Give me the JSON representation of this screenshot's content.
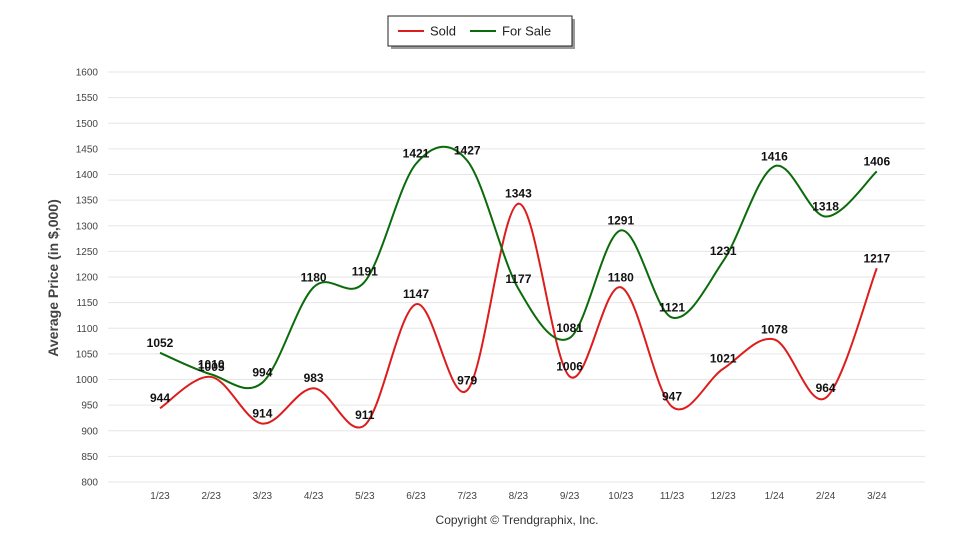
{
  "chart_data": {
    "type": "line",
    "title": "",
    "xlabel": "",
    "ylabel": "Average Price (in $,000)",
    "categories": [
      "1/23",
      "2/23",
      "3/23",
      "4/23",
      "5/23",
      "6/23",
      "7/23",
      "8/23",
      "9/23",
      "10/23",
      "11/23",
      "12/23",
      "1/24",
      "2/24",
      "3/24"
    ],
    "series": [
      {
        "name": "Sold",
        "color": "#dd1c1c",
        "values": [
          944,
          1005,
          914,
          983,
          911,
          1147,
          979,
          1343,
          1006,
          1180,
          947,
          1021,
          1078,
          964,
          1217
        ]
      },
      {
        "name": "For Sale",
        "color": "#0b6b0b",
        "values": [
          1052,
          1010,
          994,
          1180,
          1191,
          1421,
          1427,
          1177,
          1081,
          1291,
          1121,
          1231,
          1416,
          1318,
          1406
        ]
      }
    ],
    "ylim": [
      800,
      1600
    ],
    "yticks": [
      800,
      850,
      900,
      950,
      1000,
      1050,
      1100,
      1150,
      1200,
      1250,
      1300,
      1350,
      1400,
      1450,
      1500,
      1550,
      1600
    ],
    "grid": true,
    "legend_position": "top-center",
    "smooth": true
  },
  "footer": {
    "copyright": "Copyright © Trendgraphix, Inc."
  }
}
